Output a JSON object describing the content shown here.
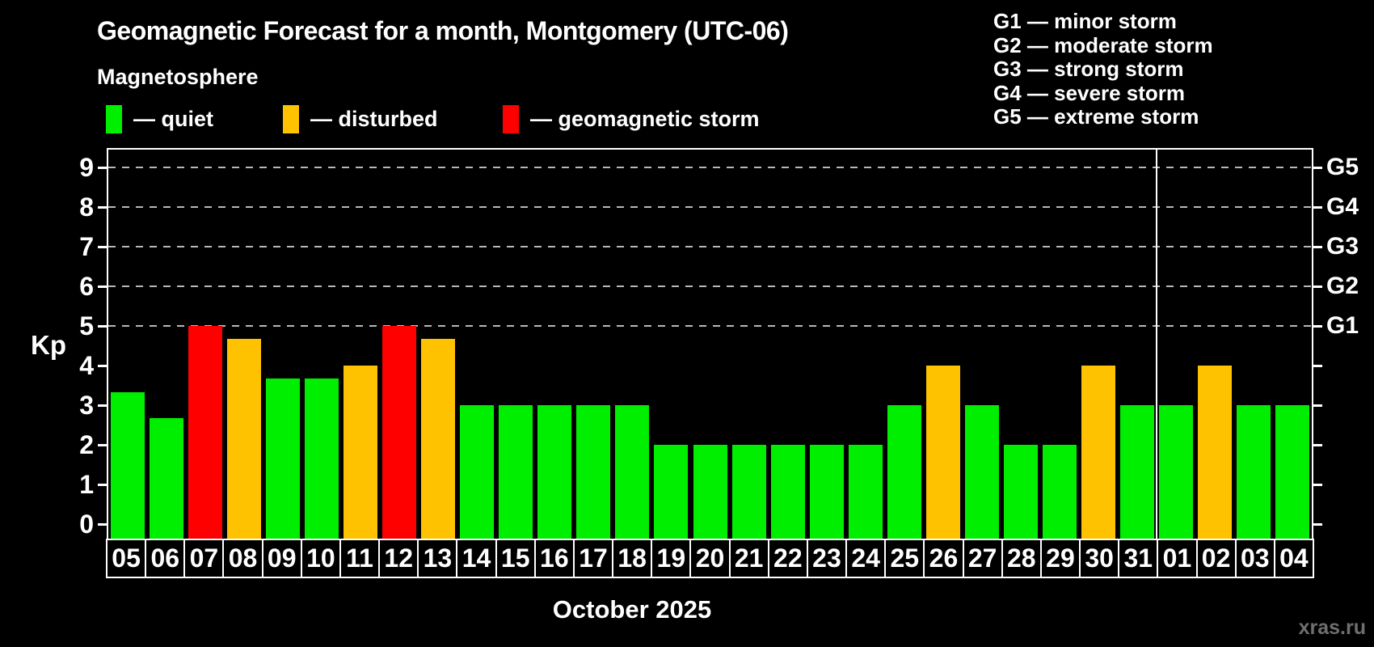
{
  "page": {
    "title": "Geomagnetic Forecast for a month, Montgomery (UTC-06)",
    "subtitle": "Magnetosphere",
    "watermark": "xras.ru",
    "colors": {
      "background": "#000000",
      "text": "#ffffff",
      "quiet": "#00ee00",
      "disturbed": "#ffc200",
      "storm": "#ff0000",
      "grid": "#b8b8b8",
      "watermark": "#6f6f6f"
    }
  },
  "legend": {
    "items": [
      {
        "label": "— quiet",
        "status": "quiet"
      },
      {
        "label": "— disturbed",
        "status": "disturbed"
      },
      {
        "label": "— geomagnetic storm",
        "status": "storm"
      }
    ]
  },
  "storm_scale": {
    "lines": [
      "G1 — minor storm",
      "G2 — moderate storm",
      "G3 — strong storm",
      "G4 — severe storm",
      "G5 — extreme storm"
    ]
  },
  "chart_data": {
    "type": "bar",
    "title": "Geomagnetic Forecast for a month, Montgomery (UTC-06)",
    "ylabel": "Kp",
    "month_label": "October 2025",
    "ylim": [
      -0.36,
      9.45
    ],
    "y_ticks": [
      0,
      1,
      2,
      3,
      4,
      5,
      6,
      7,
      8,
      9
    ],
    "gridlines_at": [
      5,
      6,
      7,
      8,
      9
    ],
    "grid_style": "dashed horizontal, Kp 5-9 only",
    "legend_position": "top-left",
    "right_axis_labels": [
      {
        "label": "G5",
        "kp": 9
      },
      {
        "label": "G4",
        "kp": 8
      },
      {
        "label": "G3",
        "kp": 7
      },
      {
        "label": "G2",
        "kp": 6
      },
      {
        "label": "G1",
        "kp": 5
      }
    ],
    "month_separator_after_index": 26,
    "days": [
      {
        "day": "05",
        "kp": 3.33,
        "status": "quiet"
      },
      {
        "day": "06",
        "kp": 2.67,
        "status": "quiet"
      },
      {
        "day": "07",
        "kp": 5.0,
        "status": "storm"
      },
      {
        "day": "08",
        "kp": 4.67,
        "status": "disturbed"
      },
      {
        "day": "09",
        "kp": 3.67,
        "status": "quiet"
      },
      {
        "day": "10",
        "kp": 3.67,
        "status": "quiet"
      },
      {
        "day": "11",
        "kp": 4.0,
        "status": "disturbed"
      },
      {
        "day": "12",
        "kp": 5.0,
        "status": "storm"
      },
      {
        "day": "13",
        "kp": 4.67,
        "status": "disturbed"
      },
      {
        "day": "14",
        "kp": 3.0,
        "status": "quiet"
      },
      {
        "day": "15",
        "kp": 3.0,
        "status": "quiet"
      },
      {
        "day": "16",
        "kp": 3.0,
        "status": "quiet"
      },
      {
        "day": "17",
        "kp": 3.0,
        "status": "quiet"
      },
      {
        "day": "18",
        "kp": 3.0,
        "status": "quiet"
      },
      {
        "day": "19",
        "kp": 2.0,
        "status": "quiet"
      },
      {
        "day": "20",
        "kp": 2.0,
        "status": "quiet"
      },
      {
        "day": "21",
        "kp": 2.0,
        "status": "quiet"
      },
      {
        "day": "22",
        "kp": 2.0,
        "status": "quiet"
      },
      {
        "day": "23",
        "kp": 2.0,
        "status": "quiet"
      },
      {
        "day": "24",
        "kp": 2.0,
        "status": "quiet"
      },
      {
        "day": "25",
        "kp": 3.0,
        "status": "quiet"
      },
      {
        "day": "26",
        "kp": 4.0,
        "status": "disturbed"
      },
      {
        "day": "27",
        "kp": 3.0,
        "status": "quiet"
      },
      {
        "day": "28",
        "kp": 2.0,
        "status": "quiet"
      },
      {
        "day": "29",
        "kp": 2.0,
        "status": "quiet"
      },
      {
        "day": "30",
        "kp": 4.0,
        "status": "disturbed"
      },
      {
        "day": "31",
        "kp": 3.0,
        "status": "quiet"
      },
      {
        "day": "01",
        "kp": 3.0,
        "status": "quiet"
      },
      {
        "day": "02",
        "kp": 4.0,
        "status": "disturbed"
      },
      {
        "day": "03",
        "kp": 3.0,
        "status": "quiet"
      },
      {
        "day": "04",
        "kp": 3.0,
        "status": "quiet"
      }
    ]
  }
}
